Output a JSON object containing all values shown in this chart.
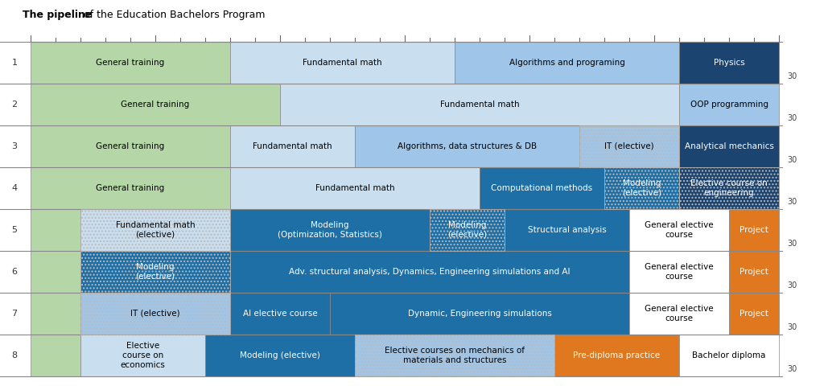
{
  "title_bold": "The pipeline",
  "title_rest": " of the Education Bachelors Program",
  "n_rows": 8,
  "total_cols": 30,
  "rows": [
    {
      "row": 1,
      "segments": [
        {
          "label": "General training",
          "start": 0,
          "end": 8,
          "color": "#b5d7a8",
          "text_color": "#000000",
          "hatch": ""
        },
        {
          "label": "Fundamental math",
          "start": 8,
          "end": 17,
          "color": "#c9dff0",
          "text_color": "#000000",
          "hatch": ""
        },
        {
          "label": "Algorithms and programing",
          "start": 17,
          "end": 26,
          "color": "#9fc5e8",
          "text_color": "#000000",
          "hatch": ""
        },
        {
          "label": "Physics",
          "start": 26,
          "end": 30,
          "color": "#1c4470",
          "text_color": "#ffffff",
          "hatch": ""
        }
      ]
    },
    {
      "row": 2,
      "segments": [
        {
          "label": "General training",
          "start": 0,
          "end": 10,
          "color": "#b5d7a8",
          "text_color": "#000000",
          "hatch": ""
        },
        {
          "label": "Fundamental math",
          "start": 10,
          "end": 26,
          "color": "#c9dff0",
          "text_color": "#000000",
          "hatch": ""
        },
        {
          "label": "OOP programming",
          "start": 26,
          "end": 30,
          "color": "#9fc5e8",
          "text_color": "#000000",
          "hatch": ""
        }
      ]
    },
    {
      "row": 3,
      "segments": [
        {
          "label": "General training",
          "start": 0,
          "end": 8,
          "color": "#b5d7a8",
          "text_color": "#000000",
          "hatch": ""
        },
        {
          "label": "Fundamental math",
          "start": 8,
          "end": 13,
          "color": "#c9dff0",
          "text_color": "#000000",
          "hatch": ""
        },
        {
          "label": "Algorithms, data structures & DB",
          "start": 13,
          "end": 22,
          "color": "#9fc5e8",
          "text_color": "#000000",
          "hatch": ""
        },
        {
          "label": "IT (elective)",
          "start": 22,
          "end": 26,
          "color": "#9fc5e8",
          "text_color": "#000000",
          "hatch": "...."
        },
        {
          "label": "Analytical mechanics",
          "start": 26,
          "end": 30,
          "color": "#1c4470",
          "text_color": "#ffffff",
          "hatch": ""
        }
      ]
    },
    {
      "row": 4,
      "segments": [
        {
          "label": "General training",
          "start": 0,
          "end": 8,
          "color": "#b5d7a8",
          "text_color": "#000000",
          "hatch": ""
        },
        {
          "label": "Fundamental math",
          "start": 8,
          "end": 18,
          "color": "#c9dff0",
          "text_color": "#000000",
          "hatch": ""
        },
        {
          "label": "Computational methods",
          "start": 18,
          "end": 23,
          "color": "#1e6fa5",
          "text_color": "#ffffff",
          "hatch": ""
        },
        {
          "label": "Modeling\n(elective)",
          "start": 23,
          "end": 26,
          "color": "#1e6fa5",
          "text_color": "#ffffff",
          "hatch": "...."
        },
        {
          "label": "Elective course on\nengineering",
          "start": 26,
          "end": 30,
          "color": "#1c4470",
          "text_color": "#ffffff",
          "hatch": "...."
        }
      ]
    },
    {
      "row": 5,
      "segments": [
        {
          "label": "",
          "start": 0,
          "end": 2,
          "color": "#b5d7a8",
          "text_color": "#000000",
          "hatch": ""
        },
        {
          "label": "Fundamental math\n(elective)",
          "start": 2,
          "end": 8,
          "color": "#c9dff0",
          "text_color": "#000000",
          "hatch": "...."
        },
        {
          "label": "Modeling\n(Optimization, Statistics)",
          "start": 8,
          "end": 16,
          "color": "#1e6fa5",
          "text_color": "#ffffff",
          "hatch": ""
        },
        {
          "label": "Modeling\n(elective)",
          "start": 16,
          "end": 19,
          "color": "#1e6fa5",
          "text_color": "#ffffff",
          "hatch": "...."
        },
        {
          "label": "Structural analysis",
          "start": 19,
          "end": 24,
          "color": "#1e6fa5",
          "text_color": "#ffffff",
          "hatch": ""
        },
        {
          "label": "General elective\ncourse",
          "start": 24,
          "end": 28,
          "color": "#ffffff",
          "text_color": "#000000",
          "hatch": ""
        },
        {
          "label": "Project",
          "start": 28,
          "end": 30,
          "color": "#e07820",
          "text_color": "#ffffff",
          "hatch": ""
        }
      ]
    },
    {
      "row": 6,
      "segments": [
        {
          "label": "",
          "start": 0,
          "end": 2,
          "color": "#b5d7a8",
          "text_color": "#000000",
          "hatch": ""
        },
        {
          "label": "Modeling\n(elective)",
          "start": 2,
          "end": 8,
          "color": "#1e6fa5",
          "text_color": "#ffffff",
          "hatch": "...."
        },
        {
          "label": "Adv. structural analysis, Dynamics, Engineering simulations and AI",
          "start": 8,
          "end": 24,
          "color": "#1e6fa5",
          "text_color": "#ffffff",
          "hatch": ""
        },
        {
          "label": "General elective\ncourse",
          "start": 24,
          "end": 28,
          "color": "#ffffff",
          "text_color": "#000000",
          "hatch": ""
        },
        {
          "label": "Project",
          "start": 28,
          "end": 30,
          "color": "#e07820",
          "text_color": "#ffffff",
          "hatch": ""
        }
      ]
    },
    {
      "row": 7,
      "segments": [
        {
          "label": "",
          "start": 0,
          "end": 2,
          "color": "#b5d7a8",
          "text_color": "#000000",
          "hatch": ""
        },
        {
          "label": "IT (elective)",
          "start": 2,
          "end": 8,
          "color": "#9fc5e8",
          "text_color": "#000000",
          "hatch": "...."
        },
        {
          "label": "AI elective course",
          "start": 8,
          "end": 12,
          "color": "#1e6fa5",
          "text_color": "#ffffff",
          "hatch": ""
        },
        {
          "label": "Dynamic, Engineering simulations",
          "start": 12,
          "end": 24,
          "color": "#1e6fa5",
          "text_color": "#ffffff",
          "hatch": ""
        },
        {
          "label": "General elective\ncourse",
          "start": 24,
          "end": 28,
          "color": "#ffffff",
          "text_color": "#000000",
          "hatch": ""
        },
        {
          "label": "Project",
          "start": 28,
          "end": 30,
          "color": "#e07820",
          "text_color": "#ffffff",
          "hatch": ""
        }
      ]
    },
    {
      "row": 8,
      "segments": [
        {
          "label": "",
          "start": 0,
          "end": 2,
          "color": "#b5d7a8",
          "text_color": "#000000",
          "hatch": ""
        },
        {
          "label": "Elective\ncourse on\neconomics",
          "start": 2,
          "end": 7,
          "color": "#c9dff0",
          "text_color": "#000000",
          "hatch": ""
        },
        {
          "label": "Modeling (elective)",
          "start": 7,
          "end": 13,
          "color": "#1e6fa5",
          "text_color": "#ffffff",
          "hatch": ""
        },
        {
          "label": "Elective courses on mechanics of\nmaterials and structures",
          "start": 13,
          "end": 21,
          "color": "#9fc5e8",
          "text_color": "#000000",
          "hatch": "...."
        },
        {
          "label": "Pre-diploma practice",
          "start": 21,
          "end": 26,
          "color": "#e07820",
          "text_color": "#ffffff",
          "hatch": ""
        },
        {
          "label": "Bachelor diploma",
          "start": 26,
          "end": 30,
          "color": "#ffffff",
          "text_color": "#000000",
          "hatch": ""
        }
      ]
    }
  ]
}
